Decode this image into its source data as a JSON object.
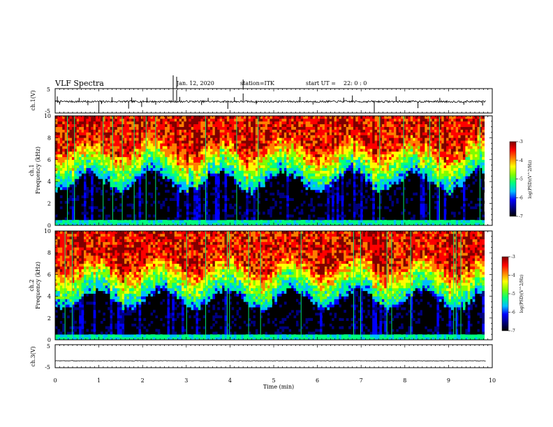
{
  "header": {
    "title": "VLF Spectra",
    "date": "Jan. 12, 2020",
    "station": "station=ITK",
    "start_prefix": "start  UT  =",
    "start_time": "22: 0  : 0"
  },
  "colors": {
    "background": "#ffffff",
    "axis": "#000000",
    "trace": "#000000",
    "colormap": [
      "#000000",
      "#00007f",
      "#0000ff",
      "#00bfff",
      "#00ff7f",
      "#7fff00",
      "#ffff00",
      "#ff7f00",
      "#ff0000",
      "#7f0000"
    ]
  },
  "chart_data": [
    {
      "type": "line",
      "panel": "ch1-waveform",
      "ylabel": "ch.1(V)",
      "ylim": [
        -5,
        5
      ],
      "y_ticks": [
        "5",
        "-5"
      ],
      "xlim": [
        0,
        10
      ],
      "baseline": -0.3,
      "noise_amplitude": 0.4,
      "spikes": [
        {
          "t": 0.05,
          "v": 1.8
        },
        {
          "t": 0.1,
          "v": -1.5
        },
        {
          "t": 0.55,
          "v": 1.2
        },
        {
          "t": 0.75,
          "v": -1.8
        },
        {
          "t": 1.0,
          "v": -5.0
        },
        {
          "t": 1.06,
          "v": -1.3
        },
        {
          "t": 1.3,
          "v": 1.5
        },
        {
          "t": 1.68,
          "v": -3.2
        },
        {
          "t": 1.75,
          "v": 1.4
        },
        {
          "t": 1.98,
          "v": -2.5
        },
        {
          "t": 2.1,
          "v": 1.3
        },
        {
          "t": 2.3,
          "v": -1.6
        },
        {
          "t": 2.7,
          "v": 5.0
        },
        {
          "t": 2.78,
          "v": 4.5
        },
        {
          "t": 2.85,
          "v": 1.6
        },
        {
          "t": 3.35,
          "v": -1.7
        },
        {
          "t": 3.5,
          "v": 1.2
        },
        {
          "t": 3.95,
          "v": -3.3
        },
        {
          "t": 4.1,
          "v": 1.5
        },
        {
          "t": 4.3,
          "v": 3.0
        },
        {
          "t": 4.6,
          "v": -1.4
        },
        {
          "t": 5.6,
          "v": 1.6
        },
        {
          "t": 5.9,
          "v": -1.5
        },
        {
          "t": 6.6,
          "v": 1.3
        },
        {
          "t": 6.8,
          "v": 2.2
        },
        {
          "t": 7.3,
          "v": -5.0
        },
        {
          "t": 7.8,
          "v": 1.8
        },
        {
          "t": 8.3,
          "v": -3.0
        },
        {
          "t": 8.8,
          "v": 1.2
        },
        {
          "t": 9.35,
          "v": -1.6
        },
        {
          "t": 9.78,
          "v": -1.9
        }
      ]
    },
    {
      "type": "heatmap",
      "panel": "ch1-spectrogram",
      "ylabel_top": "ch.1",
      "ylabel": "Frequency (kHz)",
      "ylim": [
        0,
        10
      ],
      "y_ticks": [
        "0",
        "2",
        "4",
        "6",
        "8",
        "10"
      ],
      "xlim": [
        0,
        10
      ],
      "data_end_min": 9.82,
      "colorbar": {
        "label": "log(PSD)(V^2/Hz)",
        "range": [
          -7,
          -3
        ],
        "ticks": [
          "-3",
          "-4",
          "-5",
          "-6",
          "-7"
        ]
      },
      "transition_khz": 5.5,
      "seed": 11
    },
    {
      "type": "heatmap",
      "panel": "ch2-spectrogram",
      "ylabel_top": "ch.2",
      "ylabel": "Frequency (kHz)",
      "ylim": [
        0,
        10
      ],
      "y_ticks": [
        "0",
        "2",
        "4",
        "6",
        "8",
        "10"
      ],
      "xlim": [
        0,
        10
      ],
      "data_end_min": 9.82,
      "colorbar": {
        "label": "log(PSD)(V^2/Hz)",
        "range": [
          -7,
          -3
        ],
        "ticks": [
          "-3",
          "-4",
          "-5",
          "-6",
          "-7"
        ]
      },
      "transition_khz": 5.2,
      "seed": 29
    },
    {
      "type": "line",
      "panel": "ch3-waveform",
      "ylabel": "ch.3(V)",
      "ylim": [
        -5,
        5
      ],
      "y_ticks": [
        "5",
        "-5"
      ],
      "xlim": [
        0,
        10
      ],
      "xlabel": "Time (min)",
      "x_ticks": [
        "0",
        "1",
        "2",
        "3",
        "4",
        "5",
        "6",
        "7",
        "8",
        "9",
        "10"
      ],
      "baseline": -2.0,
      "noise_amplitude": 0.1
    }
  ]
}
